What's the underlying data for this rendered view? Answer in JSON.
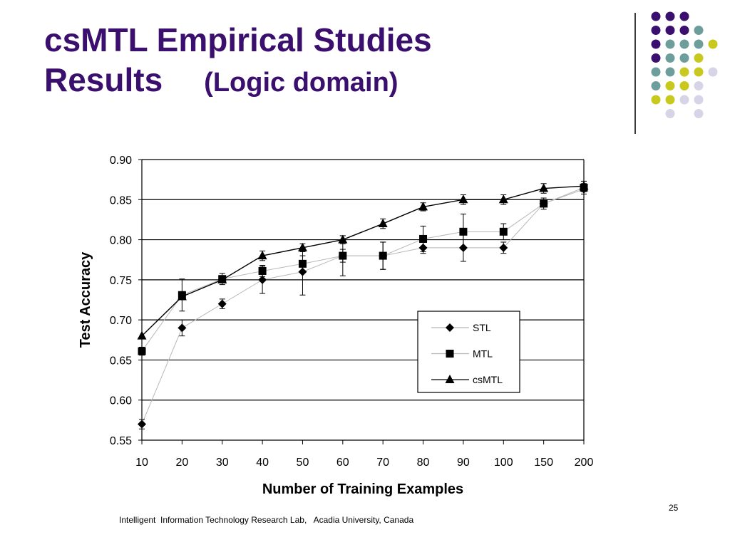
{
  "slide": {
    "title_line1": "csMTL Empirical Studies",
    "title_line2": "Results",
    "title_subtitle": "(Logic domain)",
    "page_number": "25",
    "footer": "Intelligent  Information Technology Research Lab,   Acadia University, Canada"
  },
  "decoration": {
    "dot_colors": {
      "purple": "#3b0f6e",
      "teal": "#6e9e9c",
      "yellow": "#c8c81e",
      "lavender": "#d6d4e6"
    }
  },
  "chart_data": {
    "type": "line",
    "xlabel": "Number of Training Examples",
    "ylabel": "Test Accuracy",
    "categories": [
      "10",
      "20",
      "30",
      "40",
      "50",
      "60",
      "70",
      "80",
      "90",
      "100",
      "150",
      "200"
    ],
    "ylim": [
      0.55,
      0.9
    ],
    "yticks": [
      "0.90",
      "0.85",
      "0.80",
      "0.75",
      "0.70",
      "0.65",
      "0.60",
      "0.55"
    ],
    "grid": "horizontal",
    "legend_position": "lower-right",
    "series": [
      {
        "name": "STL",
        "marker": "diamond",
        "line_color": "#b8b8b8",
        "values": [
          0.57,
          0.69,
          0.72,
          0.75,
          0.76,
          0.78,
          0.78,
          0.79,
          0.79,
          0.79,
          0.845,
          0.863
        ],
        "error": [
          0.006,
          0.01,
          0.006,
          0.017,
          0.029,
          0.025,
          0.017,
          0.007,
          0.017,
          0.007,
          0.007,
          0.006
        ]
      },
      {
        "name": "MTL",
        "marker": "square",
        "line_color": "#b8b8b8",
        "values": [
          0.661,
          0.731,
          0.751,
          0.761,
          0.77,
          0.78,
          0.78,
          0.801,
          0.81,
          0.81,
          0.845,
          0.865
        ],
        "error": [
          0.005,
          0.02,
          0.007,
          0.007,
          0.01,
          0.008,
          0.017,
          0.016,
          0.022,
          0.01,
          0.004,
          0.005
        ]
      },
      {
        "name": "csMTL",
        "marker": "triangle",
        "line_color": "#000000",
        "values": [
          0.68,
          0.729,
          0.75,
          0.78,
          0.79,
          0.8,
          0.82,
          0.841,
          0.85,
          0.85,
          0.864,
          0.867
        ],
        "error": [
          0.0,
          0.0,
          0.0,
          0.006,
          0.005,
          0.005,
          0.006,
          0.005,
          0.006,
          0.006,
          0.006,
          0.006
        ]
      }
    ]
  }
}
